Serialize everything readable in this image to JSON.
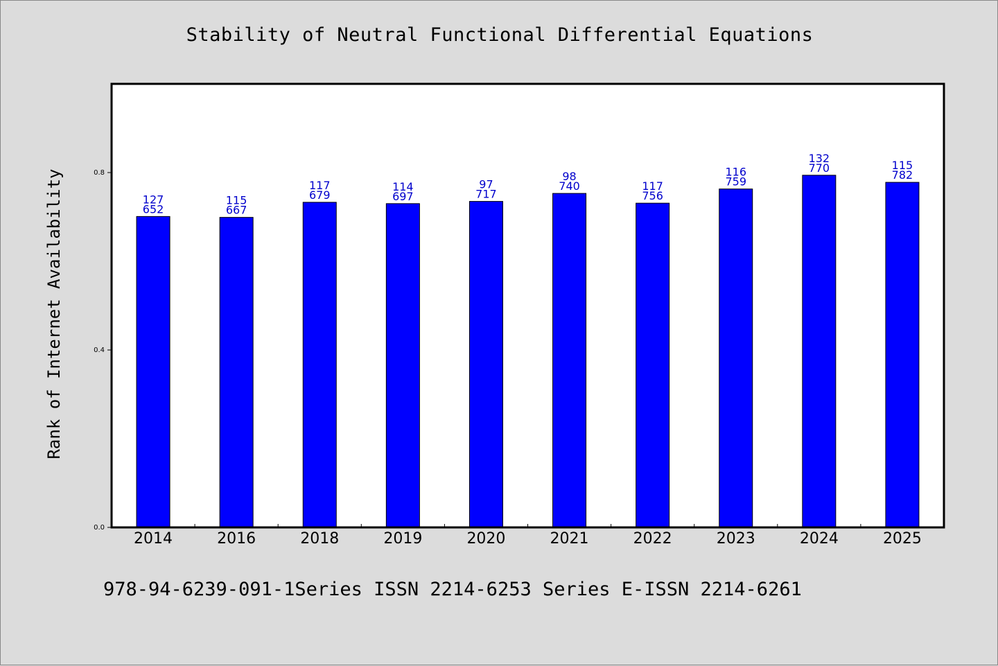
{
  "chart_data": {
    "type": "bar",
    "title": "Stability of Neutral Functional Differential Equations",
    "xlabel": "",
    "ylabel": "Rank of Internet Availability",
    "categories": [
      "2014",
      "2016",
      "2018",
      "2019",
      "2020",
      "2021",
      "2022",
      "2023",
      "2024",
      "2025"
    ],
    "values": [
      0.701,
      0.699,
      0.733,
      0.73,
      0.735,
      0.753,
      0.731,
      0.763,
      0.794,
      0.778
    ],
    "labels_top": [
      "127",
      "115",
      "117",
      "114",
      "97",
      "98",
      "117",
      "116",
      "132",
      "115"
    ],
    "labels_bottom": [
      "652",
      "667",
      "679",
      "697",
      "717",
      "740",
      "756",
      "759",
      "770",
      "782"
    ],
    "ylim": [
      0,
      1.0
    ],
    "yticks": [
      "0.0",
      "0.4",
      "0.8"
    ],
    "bar_color": "#0000ff",
    "label_color": "#0000cc",
    "grid": false
  },
  "footer": "978-94-6239-091-1Series ISSN 2214-6253 Series E-ISSN 2214-6261"
}
